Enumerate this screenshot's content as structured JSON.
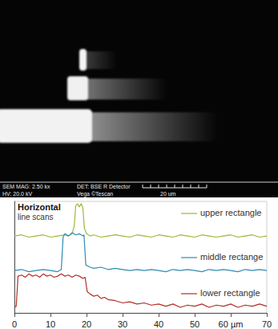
{
  "sem_image": {
    "mag": "SEM MAG: 2.50 kx",
    "hv": "HV: 20.0 kV",
    "det": "DET: BSE R Detector",
    "brand": "Vega ©Tescan",
    "scale": "20 um"
  },
  "chart_data": {
    "type": "line",
    "annotations": [
      "Horizontal",
      "line scans"
    ],
    "xlim": [
      0,
      70
    ],
    "xticks": [
      0,
      10,
      20,
      30,
      40,
      50,
      {
        "value": 60,
        "label": "60 µm"
      },
      70
    ],
    "ylim": [
      0,
      10
    ],
    "tick_labels": "x",
    "grid": false,
    "series": [
      {
        "name": "upper rectangle",
        "color": "#9cb83a",
        "x": [
          0,
          2,
          4,
          6,
          8,
          10,
          12,
          14,
          15,
          16,
          16.6,
          17,
          17.5,
          18,
          18.5,
          19,
          19.4,
          20,
          21,
          22,
          24,
          26,
          28,
          30,
          32,
          34,
          36,
          38,
          40,
          42,
          44,
          46,
          48,
          50,
          52,
          54,
          56,
          58,
          60,
          62,
          64,
          66,
          68,
          70
        ],
        "values": [
          6.9,
          7.0,
          6.8,
          6.9,
          7.0,
          6.8,
          6.9,
          7.0,
          6.9,
          7.1,
          7.8,
          9.6,
          9.8,
          9.5,
          9.8,
          9.4,
          7.6,
          7.1,
          6.9,
          7.0,
          6.8,
          6.9,
          7.0,
          6.9,
          6.8,
          7.0,
          6.9,
          6.8,
          7.0,
          6.9,
          6.8,
          7.0,
          6.9,
          6.8,
          7.0,
          6.9,
          6.8,
          6.9,
          7.0,
          6.8,
          6.9,
          7.0,
          6.8,
          6.9
        ]
      },
      {
        "name": "middle rectange",
        "color": "#2f8bb3",
        "x": [
          0,
          2,
          4,
          6,
          8,
          10,
          12,
          13,
          13.5,
          14,
          15,
          16,
          17,
          18,
          19,
          19.3,
          19.8,
          21,
          22,
          24,
          26,
          28,
          30,
          32,
          34,
          36,
          38,
          40,
          42,
          44,
          46,
          48,
          50,
          52,
          54,
          56,
          58,
          60,
          62,
          64,
          66,
          68,
          70
        ],
        "values": [
          3.8,
          3.9,
          3.7,
          3.8,
          3.9,
          3.8,
          3.7,
          3.9,
          6.8,
          7.1,
          6.9,
          7.2,
          7.0,
          7.1,
          6.9,
          7.0,
          4.3,
          4.1,
          4.0,
          4.1,
          3.9,
          4.0,
          3.9,
          3.8,
          3.9,
          3.8,
          3.9,
          3.8,
          3.7,
          3.9,
          3.8,
          3.9,
          3.8,
          3.7,
          3.9,
          3.8,
          3.9,
          3.8,
          3.7,
          3.9,
          3.8,
          3.9,
          3.8
        ]
      },
      {
        "name": "lower rectangle",
        "color": "#b0302a",
        "x": [
          0,
          0.5,
          1,
          2,
          3,
          4,
          5,
          6,
          7,
          8,
          9,
          10,
          11,
          12,
          13,
          14,
          15,
          16,
          17,
          18,
          19,
          19.6,
          20.2,
          21,
          22,
          23,
          24,
          25,
          26,
          28,
          30,
          32,
          34,
          36,
          38,
          40,
          42,
          44,
          46,
          48,
          50,
          52,
          54,
          56,
          58,
          60,
          62,
          64,
          66,
          68,
          70
        ],
        "values": [
          0.5,
          0.6,
          3.3,
          3.4,
          3.2,
          3.5,
          3.3,
          3.4,
          3.2,
          3.5,
          3.3,
          3.4,
          3.2,
          3.3,
          3.5,
          3.3,
          3.4,
          3.2,
          3.4,
          3.3,
          3.1,
          3.2,
          1.9,
          1.7,
          1.5,
          1.6,
          1.3,
          1.4,
          1.2,
          1.1,
          0.9,
          1.0,
          0.8,
          0.9,
          0.7,
          0.8,
          0.6,
          0.8,
          0.5,
          0.7,
          0.6,
          0.8,
          0.5,
          0.7,
          0.6,
          0.8,
          0.5,
          0.7,
          0.6,
          0.8,
          0.6
        ]
      }
    ]
  }
}
